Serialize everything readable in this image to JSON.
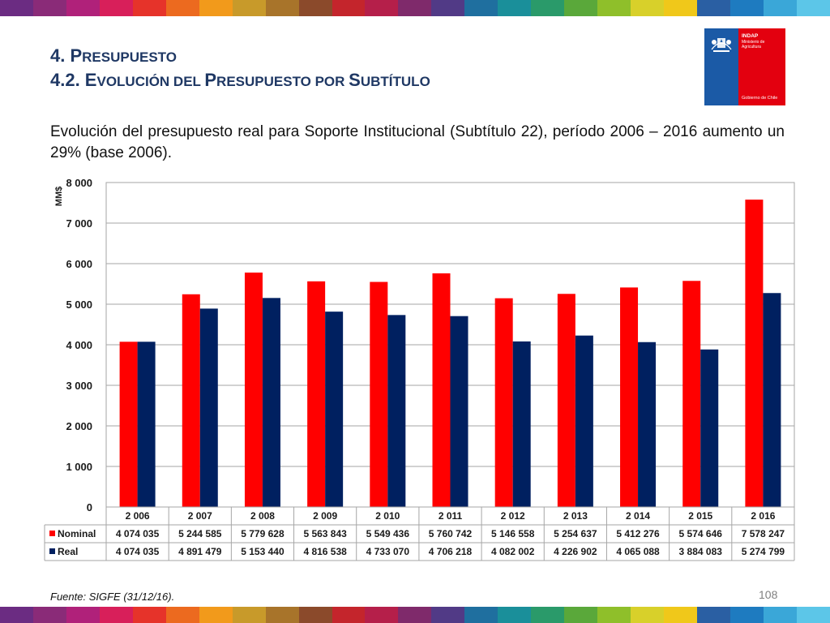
{
  "title_line1": {
    "number": "4. P",
    "rest": "resupuesto"
  },
  "title_line2": {
    "number": "4.2. E",
    "rest1": "volución del ",
    "cap2": "P",
    "rest2": "resupuesto por ",
    "cap3": "S",
    "rest3": "ubtítulo"
  },
  "description": "Evolución del presupuesto real para Soporte Institucional (Subtítulo 22), período 2006 – 2016 aumento un 29% (base 2006).",
  "logo": {
    "line1": "INDAP",
    "line2": "Ministerio de Agricultura",
    "line3": "Gobierno de Chile"
  },
  "source": "Fuente: SIGFE (31/12/16).",
  "page_number": "108",
  "stripe_colors": [
    "#6b2c82",
    "#8a2b78",
    "#b0217a",
    "#d81f5a",
    "#e6332a",
    "#ec6a1f",
    "#f29a1b",
    "#c89a2a",
    "#a8742a",
    "#8b4a2b",
    "#c4252c",
    "#b51f4a",
    "#7f2a6b",
    "#513a86",
    "#1f6f9f",
    "#1a8f9a",
    "#2a9a6a",
    "#5aa83a",
    "#8fbf2a",
    "#d8d02a",
    "#f0c81a",
    "#2a5fa3",
    "#1e7bc0",
    "#3aa7d8",
    "#5cc6e8"
  ],
  "chart_data": {
    "type": "bar",
    "categories": [
      "2 006",
      "2 007",
      "2 008",
      "2 009",
      "2 010",
      "2 011",
      "2 012",
      "2 013",
      "2 014",
      "2 015",
      "2 016"
    ],
    "series": [
      {
        "name": "Nominal",
        "color": "#ff0000",
        "values": [
          4074035,
          5244585,
          5779628,
          5563843,
          5549436,
          5760742,
          5146558,
          5254637,
          5412276,
          5574646,
          7578247
        ],
        "labels": [
          "4 074 035",
          "5 244 585",
          "5 779 628",
          "5 563 843",
          "5 549 436",
          "5 760 742",
          "5 146 558",
          "5 254 637",
          "5 412 276",
          "5 574 646",
          "7 578 247"
        ]
      },
      {
        "name": "Real",
        "color": "#002060",
        "values": [
          4074035,
          4891479,
          5153440,
          4816538,
          4733070,
          4706218,
          4082002,
          4226902,
          4065088,
          3884083,
          5274799
        ],
        "labels": [
          "4 074 035",
          "4 891 479",
          "5 153 440",
          "4 816 538",
          "4 733 070",
          "4 706 218",
          "4 082 002",
          "4 226 902",
          "4 065 088",
          "3 884 083",
          "5 274 799"
        ]
      }
    ],
    "ylabel": "MM$",
    "ylim": [
      0,
      8000
    ],
    "yticks": [
      0,
      1000,
      2000,
      3000,
      4000,
      5000,
      6000,
      7000,
      8000
    ],
    "ytick_labels": [
      "0",
      "1 000",
      "2 000",
      "3 000",
      "4 000",
      "5 000",
      "6 000",
      "7 000",
      "8 000"
    ],
    "value_divisor": 1000,
    "grid": true,
    "data_table": true
  }
}
